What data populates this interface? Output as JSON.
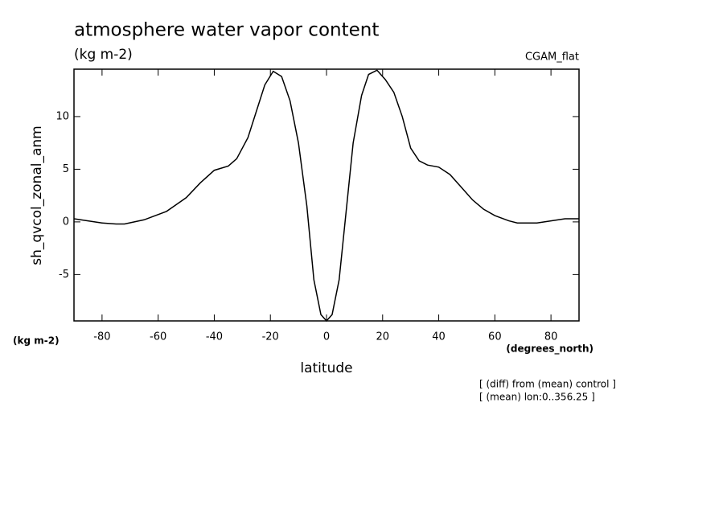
{
  "chart_data": {
    "type": "line",
    "title": "atmosphere water vapor content",
    "subtitle": "(kg m-2)",
    "case_label": "CGAM_flat",
    "y_label": "sh_qvcol_zonal_anm",
    "y_units": "(kg m-2)",
    "x_units": "(degrees_north)",
    "x_label": "latitude",
    "notes": [
      "[ (diff) from (mean) control ]",
      "[ (mean) lon:0..356.25 ]"
    ],
    "color": "#000000",
    "x": [
      -90,
      -85,
      -80,
      -75,
      -72,
      -65,
      -57,
      -50,
      -45,
      -40,
      -35,
      -32,
      -28,
      -25,
      -22,
      -19,
      -16,
      -13,
      -10,
      -7,
      -4.5,
      -2,
      0,
      2,
      4.5,
      7,
      9.5,
      12.5,
      15,
      18,
      21,
      24,
      27,
      30,
      33,
      36,
      40,
      44,
      48,
      52,
      56,
      60,
      65,
      68,
      75,
      80,
      85,
      90
    ],
    "values": [
      0.3,
      0.1,
      -0.1,
      -0.2,
      -0.2,
      0.2,
      1.0,
      2.3,
      3.7,
      4.9,
      5.3,
      6.0,
      8.0,
      10.5,
      13.0,
      14.3,
      13.8,
      11.5,
      7.5,
      1.5,
      -5.5,
      -8.8,
      -9.4,
      -8.8,
      -5.5,
      1.0,
      7.5,
      12.0,
      14.0,
      14.4,
      13.5,
      12.3,
      10.0,
      7.0,
      5.8,
      5.4,
      5.2,
      4.5,
      3.3,
      2.1,
      1.2,
      0.6,
      0.1,
      -0.1,
      -0.1,
      0.1,
      0.3,
      0.3
    ],
    "xlim": [
      -90,
      90
    ],
    "xticks": [
      -80,
      -60,
      -40,
      -20,
      0,
      20,
      40,
      60,
      80
    ],
    "ylim": [
      -9.4,
      14.5
    ],
    "yticks": [
      -5,
      0,
      5,
      10
    ]
  }
}
